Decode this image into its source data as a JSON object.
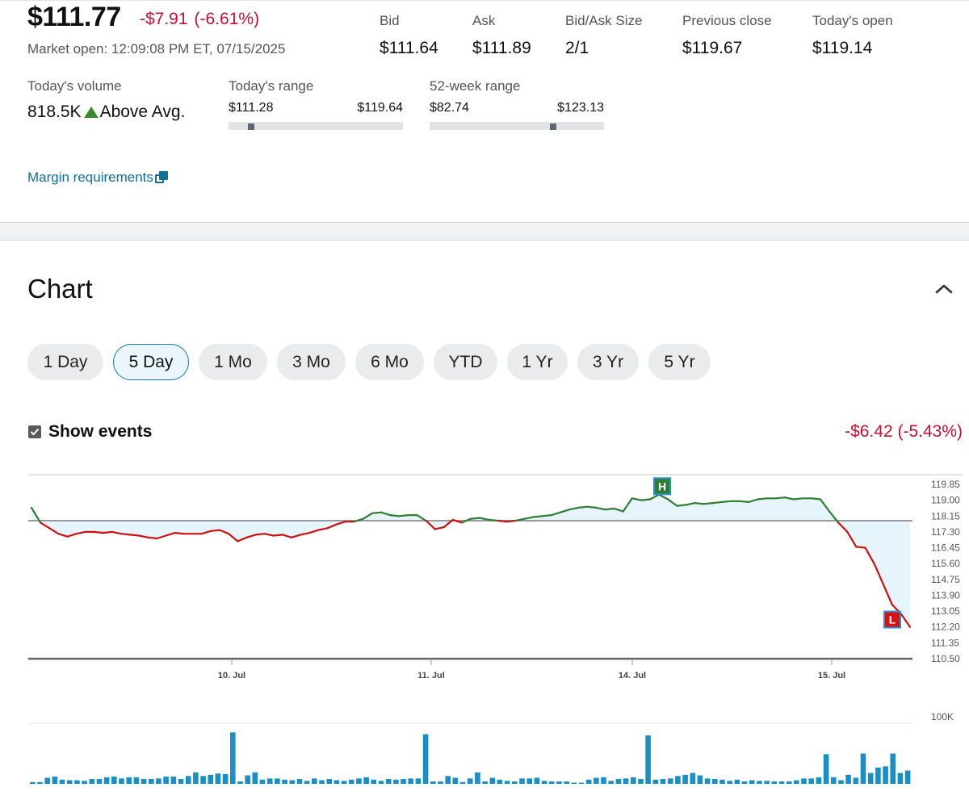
{
  "quote": {
    "price": "$111.77",
    "change": "-$7.91",
    "change_pct": "(-6.61%)",
    "market_status": "Market open: 12:09:08 PM ET, 07/15/2025"
  },
  "stats": [
    {
      "label": "Bid",
      "value": "$111.64"
    },
    {
      "label": "Ask",
      "value": "$111.89"
    },
    {
      "label": "Bid/Ask Size",
      "value": "2/1"
    },
    {
      "label": "Previous close",
      "value": "$119.67"
    },
    {
      "label": "Today's open",
      "value": "$119.14"
    }
  ],
  "volume": {
    "label": "Today's volume",
    "value": "818.5K",
    "trend_icon": "triangle-up-icon",
    "trend_text": "Above Avg."
  },
  "todays_range": {
    "label": "Today's range",
    "low": "$111.28",
    "high": "$119.64",
    "current_fraction": 0.06
  },
  "week52_range": {
    "label": "52-week range",
    "low": "$82.74",
    "high": "$123.13",
    "current_fraction": 0.7
  },
  "margin_link": {
    "label": "Margin requirements",
    "icon": "external-link-icon"
  },
  "chart_section": {
    "title": "Chart",
    "collapse_icon": "chevron-up-icon",
    "ranges": [
      "1 Day",
      "5 Day",
      "1 Mo",
      "3 Mo",
      "6 Mo",
      "YTD",
      "1 Yr",
      "3 Yr",
      "5 Yr"
    ],
    "active_range": "5 Day",
    "show_events_label": "Show events",
    "show_events_checked": true,
    "period_change": "-$6.42 (-5.43%)"
  },
  "colors": {
    "up": "#2e7d32",
    "down": "#cc1111",
    "accent": "#1b7fa6",
    "volume_bar": "#1a8fc6",
    "area_fill": "#e6f4fb"
  },
  "chart_data": {
    "type": "line",
    "title": "",
    "xlabel": "",
    "ylabel": "",
    "x_ticks": [
      "10. Jul",
      "11. Jul",
      "14. Jul",
      "15. Jul"
    ],
    "y_ticks": [
      "119.85",
      "119.00",
      "118.15",
      "117.30",
      "116.45",
      "115.60",
      "114.75",
      "113.90",
      "113.05",
      "112.20",
      "111.35",
      "110.50"
    ],
    "ylim": [
      110.5,
      119.85
    ],
    "baseline": 117.9,
    "grid": false,
    "series": [
      {
        "values": [
          118.6,
          117.8,
          117.5,
          117.2,
          117.05,
          117.2,
          117.3,
          117.3,
          117.25,
          117.3,
          117.2,
          117.15,
          117.1,
          117.0,
          116.95,
          117.1,
          117.25,
          117.2,
          117.2,
          117.2,
          117.35,
          117.4,
          117.2,
          116.8,
          117.0,
          117.15,
          117.2,
          117.1,
          117.15,
          117.0,
          117.15,
          117.25,
          117.4,
          117.5,
          117.7,
          117.85,
          117.85,
          118.0,
          118.3,
          118.35,
          118.2,
          118.15,
          118.2,
          118.2,
          117.9,
          117.45,
          117.55,
          117.95,
          117.8,
          118.0,
          118.05,
          117.95,
          117.9,
          117.85,
          117.9,
          118.0,
          118.1,
          118.15,
          118.2,
          118.35,
          118.5,
          118.6,
          118.65,
          118.6,
          118.5,
          118.55,
          118.4,
          119.1,
          119.0,
          119.05,
          119.3,
          119.05,
          118.7,
          118.75,
          118.85,
          118.8,
          118.85,
          118.9,
          118.95,
          118.95,
          118.9,
          119.05,
          119.1,
          119.1,
          119.15,
          119.05,
          119.1,
          119.1,
          119.05,
          118.4,
          117.8,
          117.3,
          116.5,
          116.45,
          115.6,
          114.5,
          113.4,
          112.9,
          112.2
        ],
        "segments_note": "green above baseline, red below"
      }
    ],
    "events": [
      {
        "label": "H",
        "value": 119.75,
        "kind": "high"
      },
      {
        "label": "L",
        "value": 112.6,
        "kind": "low"
      }
    ],
    "volume": {
      "axis_label": "100K",
      "values": [
        3,
        3,
        10,
        12,
        7,
        6,
        6,
        5,
        8,
        8,
        11,
        12,
        9,
        11,
        11,
        8,
        8,
        9,
        12,
        12,
        8,
        13,
        19,
        13,
        15,
        17,
        16,
        85,
        4,
        14,
        19,
        7,
        9,
        9,
        7,
        6,
        8,
        5,
        9,
        6,
        8,
        6,
        5,
        7,
        9,
        11,
        7,
        5,
        8,
        7,
        8,
        9,
        9,
        82,
        4,
        4,
        13,
        10,
        3,
        9,
        19,
        4,
        10,
        7,
        5,
        4,
        9,
        9,
        10,
        5,
        4,
        4,
        4,
        2,
        2,
        7,
        10,
        11,
        5,
        8,
        9,
        11,
        8,
        80,
        7,
        8,
        9,
        13,
        15,
        18,
        14,
        9,
        8,
        7,
        5,
        7,
        4,
        6,
        5,
        5,
        4,
        4,
        4,
        6,
        9,
        9,
        11,
        49,
        11,
        6,
        15,
        10,
        50,
        18,
        27,
        29,
        50,
        18,
        22
      ]
    }
  }
}
